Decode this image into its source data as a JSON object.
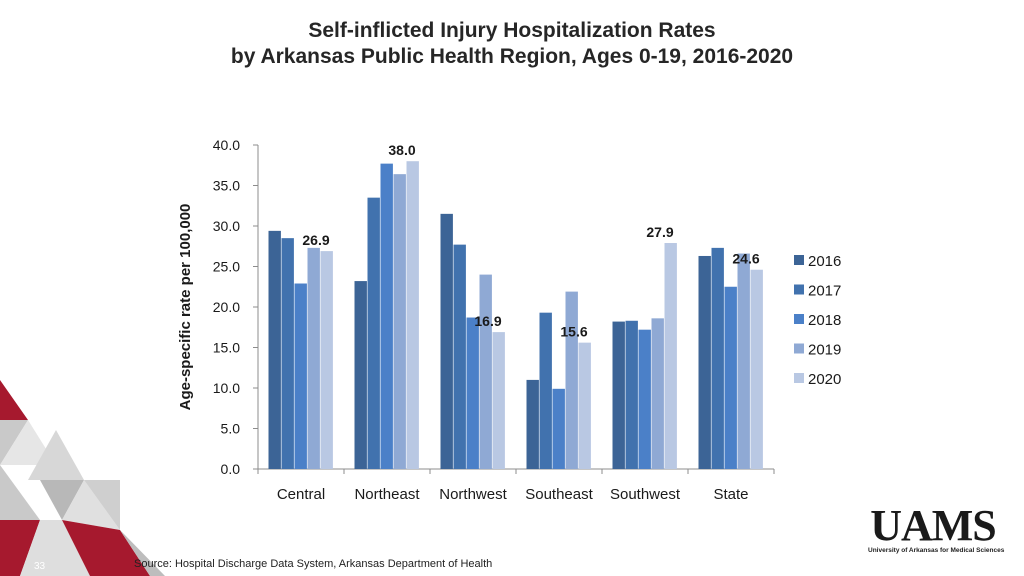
{
  "slide": {
    "title_line1": "Self-inflicted Injury Hospitalization Rates",
    "title_line2": "by Arkansas Public Health Region, Ages 0-19, 2016-2020",
    "source": "Source: Hospital Discharge Data System, Arkansas Department of Health",
    "slide_number": "33",
    "logo_text": "UAMS",
    "logo_subtext": "University of Arkansas for Medical Sciences"
  },
  "chart_data": {
    "type": "bar",
    "title": "Self-inflicted Injury Hospitalization Rates by Arkansas Public Health Region, Ages 0-19, 2016-2020",
    "xlabel": "",
    "ylabel": "Age-specific rate per 100,000",
    "ylim": [
      0,
      40
    ],
    "yticks": [
      "0.0",
      "5.0",
      "10.0",
      "15.0",
      "20.0",
      "25.0",
      "30.0",
      "35.0",
      "40.0"
    ],
    "categories": [
      "Central",
      "Northeast",
      "Northwest",
      "Southeast",
      "Southwest",
      "State"
    ],
    "series": [
      {
        "name": "2016",
        "color": "#3c6496",
        "values": [
          29.4,
          23.2,
          31.5,
          11.0,
          18.2,
          26.3
        ]
      },
      {
        "name": "2017",
        "color": "#4172ae",
        "values": [
          28.5,
          33.5,
          27.7,
          19.3,
          18.3,
          27.3
        ]
      },
      {
        "name": "2018",
        "color": "#4b80c8",
        "values": [
          22.9,
          37.7,
          18.7,
          9.9,
          17.2,
          22.5
        ]
      },
      {
        "name": "2019",
        "color": "#8fa9d4",
        "values": [
          27.3,
          36.4,
          24.0,
          21.9,
          18.6,
          26.6
        ]
      },
      {
        "name": "2020",
        "color": "#b9c8e3",
        "values": [
          26.9,
          38.0,
          16.9,
          15.6,
          27.9,
          24.6
        ]
      }
    ],
    "data_labels": [
      "26.9",
      "38.0",
      "16.9",
      "15.6",
      "27.9",
      "24.6"
    ],
    "data_label_series": "2020",
    "legend_position": "right",
    "grid": false
  }
}
